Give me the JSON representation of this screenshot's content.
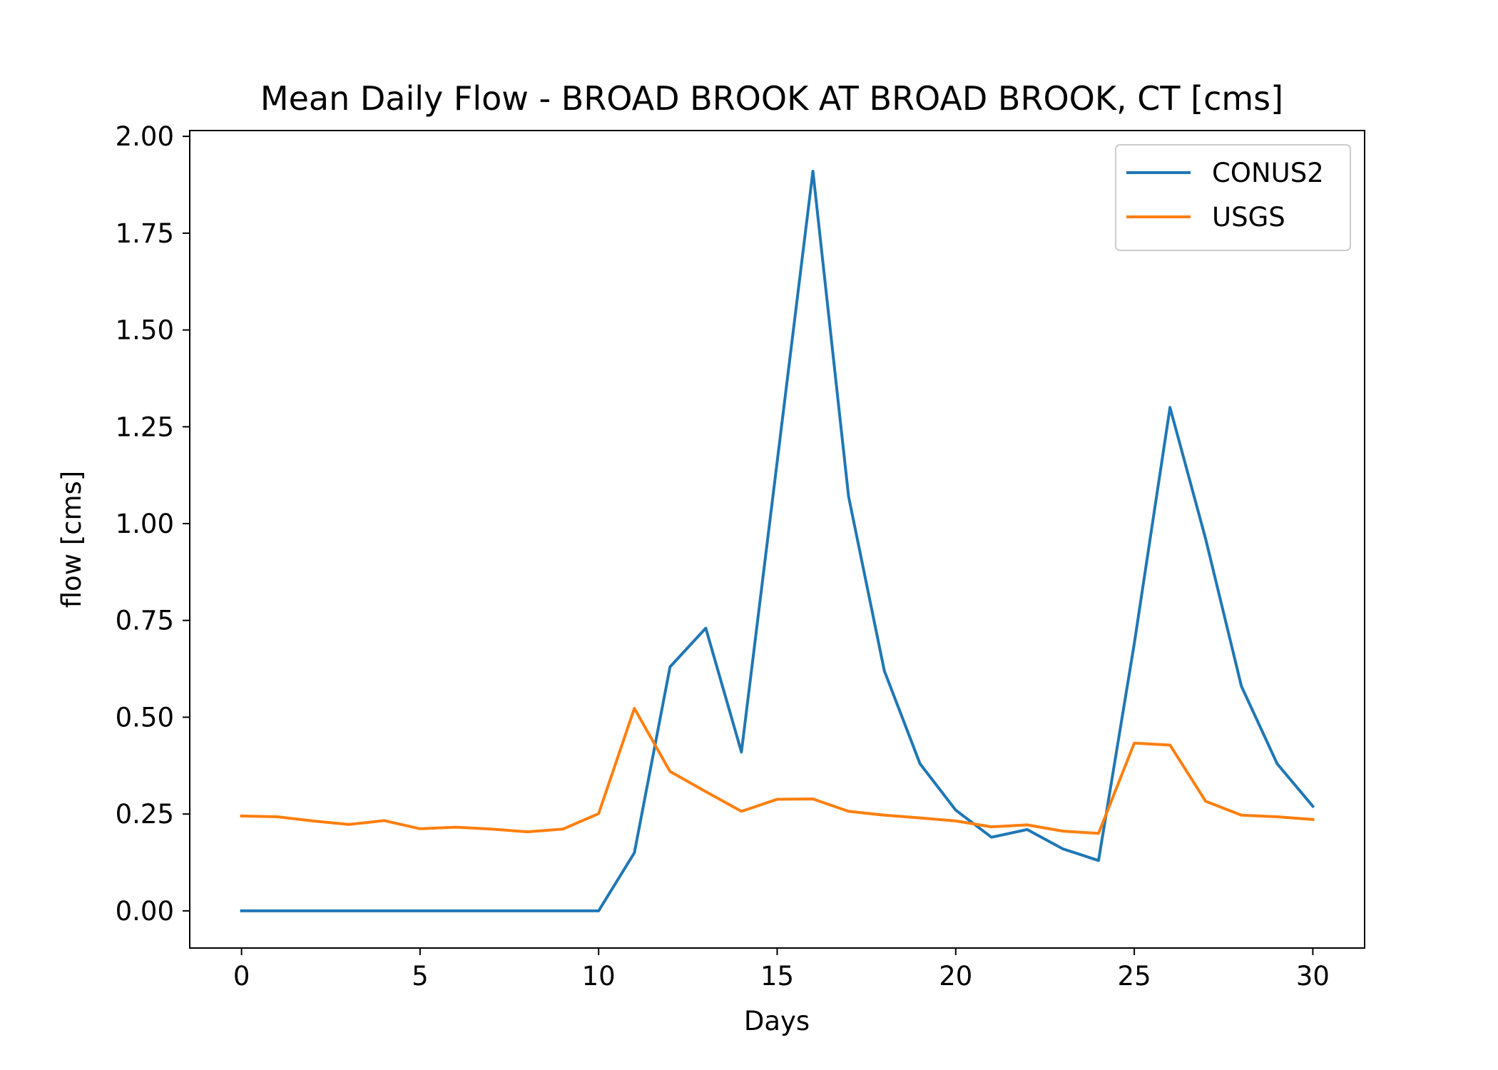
{
  "chart_data": {
    "type": "line",
    "title": "Mean Daily Flow - BROAD BROOK AT BROAD BROOK, CT [cms]",
    "xlabel": "Days",
    "ylabel": "flow [cms]",
    "xlim": [
      -1.45,
      31.45
    ],
    "ylim": [
      -0.096,
      2.015
    ],
    "xticks": [
      0,
      5,
      10,
      15,
      20,
      25,
      30
    ],
    "xtick_labels": [
      "0",
      "5",
      "10",
      "15",
      "20",
      "25",
      "30"
    ],
    "yticks": [
      0.0,
      0.25,
      0.5,
      0.75,
      1.0,
      1.25,
      1.5,
      1.75,
      2.0
    ],
    "ytick_labels": [
      "0.00",
      "0.25",
      "0.50",
      "0.75",
      "1.00",
      "1.25",
      "1.50",
      "1.75",
      "2.00"
    ],
    "grid": false,
    "legend_position": "top-right",
    "x": [
      0,
      1,
      2,
      3,
      4,
      5,
      6,
      7,
      8,
      9,
      10,
      11,
      12,
      13,
      14,
      15,
      16,
      17,
      18,
      19,
      20,
      21,
      22,
      23,
      24,
      25,
      26,
      27,
      28,
      29,
      30
    ],
    "series": [
      {
        "name": "CONUS2",
        "color": "#1f77b4",
        "values": [
          0.0,
          0.0,
          0.0,
          0.0,
          0.0,
          0.0,
          0.0,
          0.0,
          0.0,
          0.0,
          0.0,
          0.15,
          0.63,
          0.73,
          0.41,
          1.16,
          1.91,
          1.07,
          0.62,
          0.38,
          0.26,
          0.19,
          0.21,
          0.16,
          0.13,
          0.69,
          1.3,
          0.96,
          0.58,
          0.38,
          0.27
        ]
      },
      {
        "name": "USGS",
        "color": "#ff7f0e",
        "values": [
          0.245,
          0.243,
          0.232,
          0.223,
          0.233,
          0.212,
          0.216,
          0.211,
          0.204,
          0.211,
          0.251,
          0.523,
          0.36,
          0.308,
          0.257,
          0.288,
          0.289,
          0.257,
          0.247,
          0.24,
          0.232,
          0.217,
          0.222,
          0.206,
          0.2,
          0.433,
          0.428,
          0.283,
          0.247,
          0.243,
          0.236
        ]
      }
    ]
  }
}
